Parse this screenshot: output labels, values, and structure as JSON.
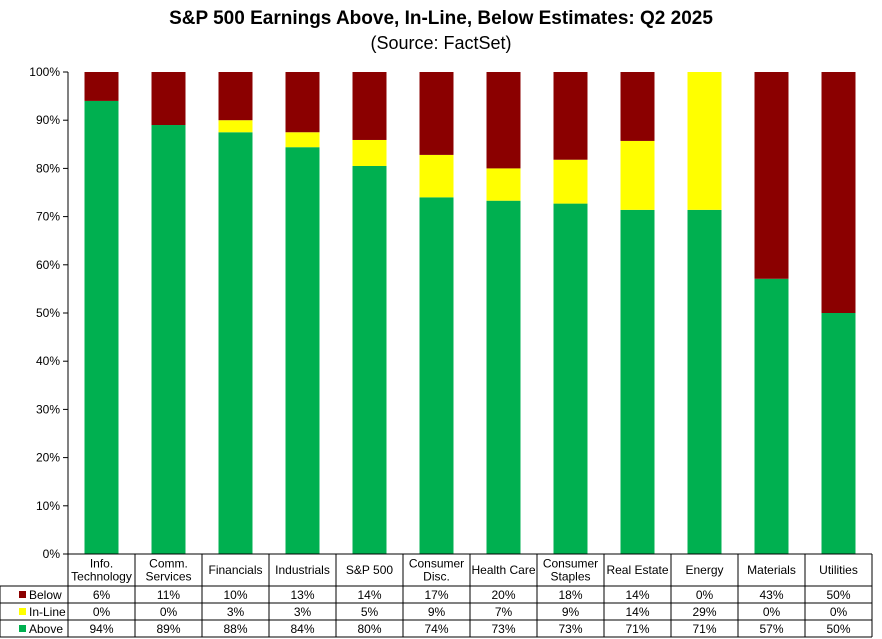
{
  "chart_data": {
    "type": "bar",
    "stacked": true,
    "title": "S&P 500 Earnings Above, In-Line, Below Estimates: Q2 2025",
    "subtitle": "(Source: FactSet)",
    "xlabel": "",
    "ylabel": "",
    "ylim": [
      0,
      100
    ],
    "yticks": [
      "0%",
      "10%",
      "20%",
      "30%",
      "40%",
      "50%",
      "60%",
      "70%",
      "80%",
      "90%",
      "100%"
    ],
    "grid": false,
    "legend": "table-bottom",
    "categories": [
      [
        "Info.",
        "Technology"
      ],
      [
        "Comm.",
        "Services"
      ],
      [
        "Financials"
      ],
      [
        "Industrials"
      ],
      [
        "S&P 500"
      ],
      [
        "Consumer",
        "Disc."
      ],
      [
        "Health Care"
      ],
      [
        "Consumer",
        "Staples"
      ],
      [
        "Real Estate"
      ],
      [
        "Energy"
      ],
      [
        "Materials"
      ],
      [
        "Utilities"
      ]
    ],
    "series": [
      {
        "name": "Above",
        "color": "#00b050",
        "values": [
          94,
          89,
          88,
          84,
          80,
          74,
          73,
          73,
          71,
          71,
          57,
          50
        ],
        "plot_values": [
          94,
          89,
          87.5,
          84.4,
          80.5,
          74,
          73.3,
          72.7,
          71.4,
          71.4,
          57.1,
          50
        ],
        "labels": [
          "94%",
          "89%",
          "88%",
          "84%",
          "80%",
          "74%",
          "73%",
          "73%",
          "71%",
          "71%",
          "57%",
          "50%"
        ]
      },
      {
        "name": "In-Line",
        "color": "#ffff00",
        "values": [
          0,
          0,
          3,
          3,
          5,
          9,
          7,
          9,
          14,
          29,
          0,
          0
        ],
        "plot_values": [
          0,
          0,
          2.5,
          3.1,
          5.4,
          8.8,
          6.7,
          9.1,
          14.3,
          28.6,
          0,
          0
        ],
        "labels": [
          "0%",
          "0%",
          "3%",
          "3%",
          "5%",
          "9%",
          "7%",
          "9%",
          "14%",
          "29%",
          "0%",
          "0%"
        ]
      },
      {
        "name": "Below",
        "color": "#8b0000",
        "values": [
          6,
          11,
          10,
          13,
          14,
          17,
          20,
          18,
          14,
          0,
          43,
          50
        ],
        "plot_values": [
          6,
          11,
          10,
          12.5,
          14.1,
          17.2,
          20,
          18.2,
          14.3,
          0,
          42.9,
          50
        ],
        "labels": [
          "6%",
          "11%",
          "10%",
          "13%",
          "14%",
          "17%",
          "20%",
          "18%",
          "14%",
          "0%",
          "43%",
          "50%"
        ]
      }
    ],
    "table_row_order": [
      "Below",
      "In-Line",
      "Above"
    ]
  }
}
